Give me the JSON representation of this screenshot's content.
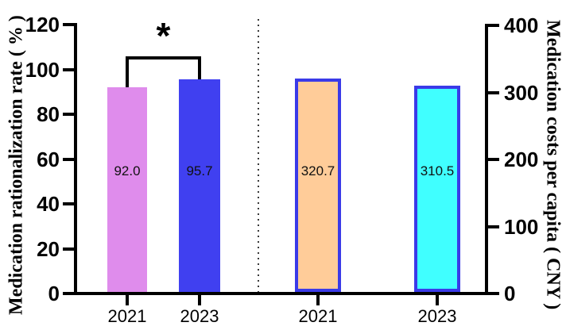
{
  "chart_data": {
    "type": "bar",
    "title": "",
    "left_axis": {
      "label": "Medication rationalization rate ( % )",
      "ticks": [
        0,
        20,
        40,
        60,
        80,
        100,
        120
      ],
      "range": [
        0,
        120
      ]
    },
    "right_axis": {
      "label": "Medication costs per capita ( CNY )",
      "ticks": [
        0,
        100,
        200,
        300,
        400
      ],
      "range": [
        0,
        400
      ]
    },
    "categories": [
      "2021",
      "2023",
      "2021",
      "2023"
    ],
    "bars": [
      {
        "axis": "left",
        "category": "2021",
        "value": 92.0,
        "value_label": "92.0",
        "fill": "#df8cec",
        "border": null
      },
      {
        "axis": "left",
        "category": "2023",
        "value": 95.7,
        "value_label": "95.7",
        "fill": "#4040f0",
        "border": null
      },
      {
        "axis": "right",
        "category": "2021",
        "value": 320.7,
        "value_label": "320.7",
        "fill": "#ffcc99",
        "border": "#3a3ae8"
      },
      {
        "axis": "right",
        "category": "2023",
        "value": 310.5,
        "value_label": "310.5",
        "fill": "#40ffff",
        "border": "#3a3ae8"
      }
    ],
    "significance": {
      "symbol": "*",
      "between": [
        0,
        1
      ]
    },
    "separator_between_groups": true,
    "legend": null,
    "grid": false,
    "colors": {
      "axis": "#000000",
      "separator": "#3a3a3a",
      "value_label": "#111111"
    }
  }
}
